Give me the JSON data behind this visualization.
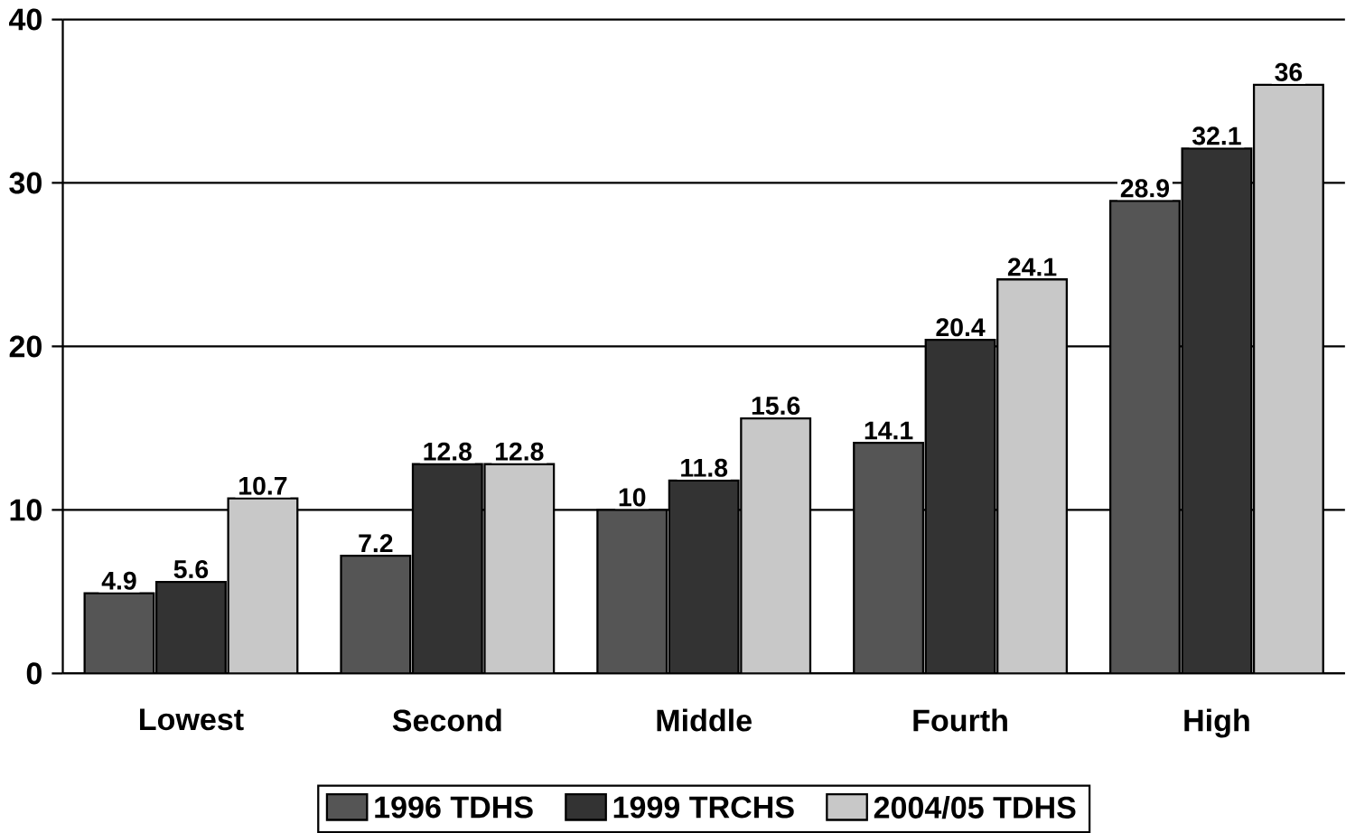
{
  "chart_data": {
    "type": "bar",
    "categories": [
      "Lowest",
      "Second",
      "Middle",
      "Fourth",
      "High"
    ],
    "series": [
      {
        "name": "1996 TDHS",
        "color": "#555555",
        "values": [
          4.9,
          7.2,
          10,
          14.1,
          28.9
        ]
      },
      {
        "name": "1999 TRCHS",
        "color": "#333333",
        "values": [
          5.6,
          12.8,
          11.8,
          20.4,
          32.1
        ]
      },
      {
        "name": "2004/05 TDHS",
        "color": "#c8c8c8",
        "values": [
          10.7,
          12.8,
          15.6,
          24.1,
          36
        ]
      }
    ],
    "ylim": [
      0,
      40
    ],
    "yticks": [
      0,
      10,
      20,
      30,
      40
    ],
    "grid": "y",
    "legend": "bottom",
    "data_labels": true
  }
}
